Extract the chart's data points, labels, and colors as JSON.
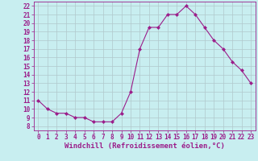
{
  "x": [
    0,
    1,
    2,
    3,
    4,
    5,
    6,
    7,
    8,
    9,
    10,
    11,
    12,
    13,
    14,
    15,
    16,
    17,
    18,
    19,
    20,
    21,
    22,
    23
  ],
  "y": [
    11,
    10,
    9.5,
    9.5,
    9,
    9,
    8.5,
    8.5,
    8.5,
    9.5,
    12,
    17,
    19.5,
    19.5,
    21,
    21,
    22,
    21,
    19.5,
    18,
    17,
    15.5,
    14.5,
    13
  ],
  "line_color": "#9b1d8a",
  "marker": "D",
  "marker_size": 2,
  "bg_color": "#c8eef0",
  "grid_color": "#b0c8cc",
  "xlabel": "Windchill (Refroidissement éolien,°C)",
  "xlim": [
    -0.5,
    23.5
  ],
  "ylim": [
    7.5,
    22.5
  ],
  "xticks": [
    0,
    1,
    2,
    3,
    4,
    5,
    6,
    7,
    8,
    9,
    10,
    11,
    12,
    13,
    14,
    15,
    16,
    17,
    18,
    19,
    20,
    21,
    22,
    23
  ],
  "yticks": [
    8,
    9,
    10,
    11,
    12,
    13,
    14,
    15,
    16,
    17,
    18,
    19,
    20,
    21,
    22
  ],
  "tick_fontsize": 5.5,
  "xlabel_fontsize": 6.5
}
